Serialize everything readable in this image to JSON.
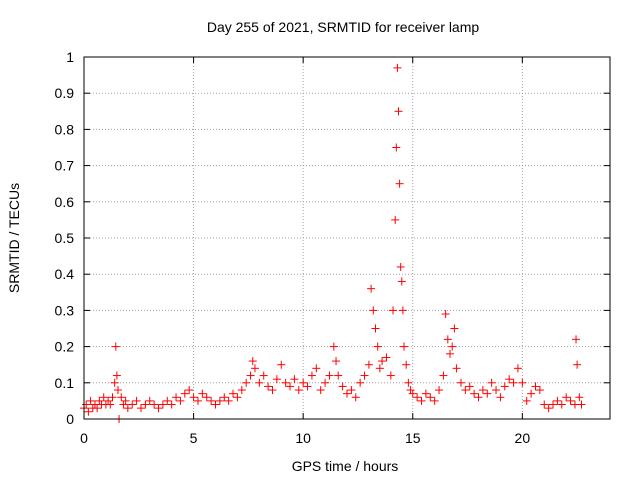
{
  "chart_data": {
    "type": "scatter",
    "title": "Day 255 of 2021, SRMTID for receiver lamp",
    "xlabel": "GPS time / hours",
    "ylabel": "SRMTID / TECUs",
    "xlim": [
      0,
      24
    ],
    "ylim": [
      0,
      1
    ],
    "xticks": [
      0,
      5,
      10,
      15,
      20
    ],
    "xtick_labels": [
      "0",
      "5",
      "10",
      "15",
      "20"
    ],
    "yticks": [
      0,
      0.1,
      0.2,
      0.3,
      0.4,
      0.5,
      0.6,
      0.7,
      0.8,
      0.9,
      1
    ],
    "ytick_labels": [
      "0",
      "0.1",
      "0.2",
      "0.3",
      "0.4",
      "0.5",
      "0.6",
      "0.7",
      "0.8",
      "0.9",
      "1"
    ],
    "grid": true,
    "marker": "+",
    "series": [
      {
        "name": "SRMTID",
        "color": "#ff0000",
        "x": [
          0,
          0.1,
          0.2,
          0.3,
          0.4,
          0.5,
          0.6,
          0.7,
          0.8,
          0.9,
          1.0,
          1.1,
          1.2,
          1.3,
          1.4,
          1.45,
          1.5,
          1.55,
          1.6,
          1.7,
          1.8,
          1.9,
          2.0,
          2.2,
          2.4,
          2.6,
          2.8,
          3.0,
          3.2,
          3.4,
          3.6,
          3.8,
          4.0,
          4.2,
          4.4,
          4.6,
          4.8,
          5.0,
          5.2,
          5.4,
          5.6,
          5.8,
          6.0,
          6.2,
          6.4,
          6.6,
          6.8,
          7.0,
          7.2,
          7.4,
          7.6,
          7.7,
          7.8,
          8.0,
          8.2,
          8.4,
          8.6,
          8.8,
          9.0,
          9.2,
          9.4,
          9.6,
          9.8,
          10.0,
          10.2,
          10.4,
          10.6,
          10.8,
          11.0,
          11.2,
          11.4,
          11.5,
          11.6,
          11.8,
          12.0,
          12.2,
          12.4,
          12.6,
          12.8,
          13.0,
          13.1,
          13.2,
          13.3,
          13.4,
          13.5,
          13.6,
          13.8,
          14.0,
          14.1,
          14.2,
          14.25,
          14.3,
          14.35,
          14.4,
          14.45,
          14.5,
          14.55,
          14.6,
          14.7,
          14.8,
          14.9,
          15.0,
          15.2,
          15.4,
          15.6,
          15.8,
          16.0,
          16.2,
          16.4,
          16.5,
          16.6,
          16.7,
          16.8,
          16.9,
          17.0,
          17.2,
          17.4,
          17.6,
          17.8,
          18.0,
          18.2,
          18.4,
          18.6,
          18.8,
          19.0,
          19.2,
          19.4,
          19.6,
          19.8,
          20.0,
          20.2,
          20.4,
          20.6,
          20.8,
          21.0,
          21.2,
          21.4,
          21.6,
          21.8,
          22.0,
          22.2,
          22.4,
          22.45,
          22.5,
          22.6,
          22.7
        ],
        "y": [
          0.03,
          0.04,
          0.02,
          0.05,
          0.03,
          0.04,
          0.03,
          0.05,
          0.04,
          0.06,
          0.04,
          0.05,
          0.04,
          0.06,
          0.1,
          0.2,
          0.12,
          0.08,
          0.0,
          0.06,
          0.04,
          0.05,
          0.03,
          0.04,
          0.05,
          0.03,
          0.04,
          0.05,
          0.04,
          0.03,
          0.04,
          0.05,
          0.04,
          0.06,
          0.05,
          0.07,
          0.08,
          0.06,
          0.05,
          0.07,
          0.06,
          0.05,
          0.04,
          0.05,
          0.06,
          0.05,
          0.07,
          0.06,
          0.08,
          0.1,
          0.12,
          0.16,
          0.14,
          0.1,
          0.12,
          0.09,
          0.08,
          0.11,
          0.15,
          0.1,
          0.09,
          0.11,
          0.08,
          0.1,
          0.09,
          0.12,
          0.14,
          0.08,
          0.1,
          0.12,
          0.2,
          0.16,
          0.12,
          0.09,
          0.07,
          0.08,
          0.06,
          0.1,
          0.12,
          0.15,
          0.36,
          0.3,
          0.25,
          0.2,
          0.14,
          0.16,
          0.17,
          0.12,
          0.3,
          0.55,
          0.75,
          0.97,
          0.85,
          0.65,
          0.42,
          0.38,
          0.3,
          0.2,
          0.15,
          0.1,
          0.08,
          0.07,
          0.06,
          0.05,
          0.07,
          0.06,
          0.05,
          0.08,
          0.12,
          0.29,
          0.22,
          0.18,
          0.2,
          0.25,
          0.14,
          0.1,
          0.08,
          0.09,
          0.07,
          0.06,
          0.08,
          0.07,
          0.1,
          0.08,
          0.06,
          0.09,
          0.11,
          0.1,
          0.14,
          0.1,
          0.05,
          0.07,
          0.09,
          0.08,
          0.04,
          0.03,
          0.04,
          0.05,
          0.04,
          0.06,
          0.05,
          0.04,
          0.22,
          0.15,
          0.06,
          0.04
        ]
      }
    ]
  }
}
